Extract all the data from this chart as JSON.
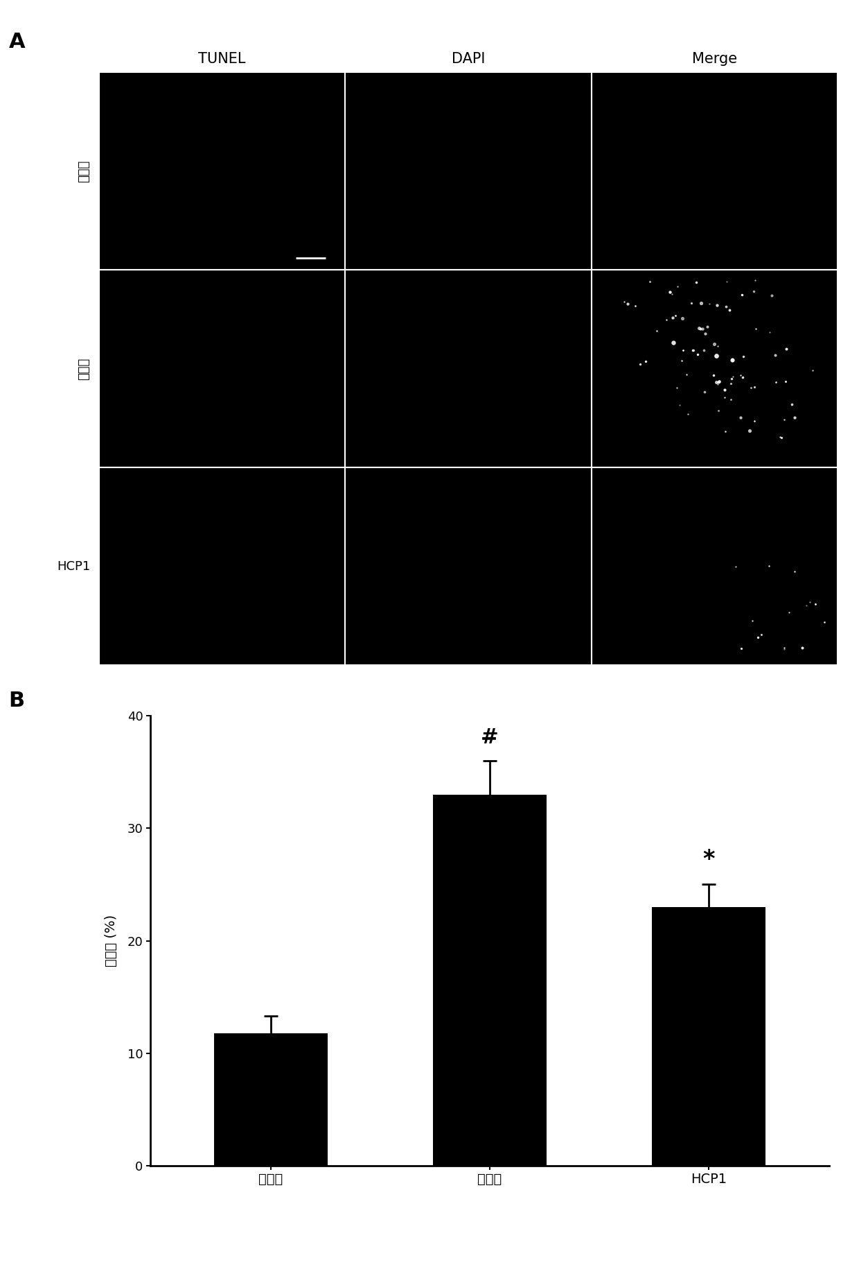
{
  "panel_A_label": "A",
  "panel_B_label": "B",
  "col_labels": [
    "TUNEL",
    "DAPI",
    "Merge"
  ],
  "row_labels": [
    "基准组",
    "对照组",
    "HCP1"
  ],
  "bar_categories": [
    "基准组",
    "对照组",
    "HCP1"
  ],
  "bar_values": [
    11.8,
    33.0,
    23.0
  ],
  "bar_errors": [
    1.5,
    3.0,
    2.0
  ],
  "bar_color": "#000000",
  "ylabel": "凋亡率 (%)",
  "ylim": [
    0,
    40
  ],
  "yticks": [
    0,
    10,
    20,
    30,
    40
  ],
  "figure_bg": "#ffffff",
  "image_bg": "#000000",
  "grid_line_color": "#ffffff"
}
